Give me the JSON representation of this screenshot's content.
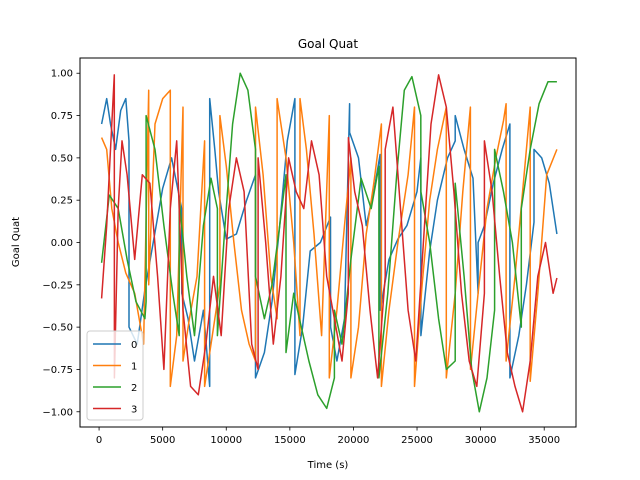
{
  "chart_data": {
    "type": "line",
    "title": "Goal Quat",
    "xlabel": "Time (s)",
    "ylabel": "Goal Quat",
    "xlim": [
      -1500,
      37500
    ],
    "ylim": [
      -1.09,
      1.09
    ],
    "xticks": [
      0,
      5000,
      10000,
      15000,
      20000,
      25000,
      30000,
      35000
    ],
    "xtick_labels": [
      "0",
      "5000",
      "10000",
      "15000",
      "20000",
      "25000",
      "30000",
      "35000"
    ],
    "yticks": [
      -1.0,
      -0.75,
      -0.5,
      -0.25,
      0.0,
      0.25,
      0.5,
      0.75,
      1.0
    ],
    "ytick_labels": [
      "−1.00",
      "−0.75",
      "−0.50",
      "−0.25",
      "0.00",
      "0.25",
      "0.50",
      "0.75",
      "1.00"
    ],
    "grid": false,
    "legend_position": "lower-left",
    "series": [
      {
        "name": "0",
        "color": "#1f77b4",
        "x": [
          200,
          600,
          900,
          1300,
          1700,
          2100,
          2350,
          2351,
          3000,
          3600,
          4300,
          5000,
          5700,
          6500,
          6501,
          7000,
          7500,
          8200,
          8700,
          8701,
          9100,
          9400,
          10000,
          10800,
          11600,
          12300,
          12301,
          13000,
          13600,
          14200,
          14800,
          15400,
          15401,
          16000,
          16600,
          17400,
          18200,
          18201,
          18700,
          19300,
          19700,
          19701,
          20400,
          21000,
          21600,
          22100,
          22101,
          22800,
          23500,
          24200,
          25000,
          25300,
          25301,
          26000,
          26600,
          27400,
          28000,
          28001,
          28700,
          29400,
          29800,
          29801,
          30300,
          31000,
          31700,
          32300,
          32301,
          33000,
          33600,
          34200,
          34201,
          34800,
          35400,
          36000
        ],
        "y": [
          0.7,
          0.85,
          0.7,
          0.55,
          0.78,
          0.85,
          0.6,
          -0.5,
          -0.6,
          -0.28,
          0.02,
          0.32,
          0.5,
          0.2,
          -0.3,
          -0.45,
          -0.7,
          -0.4,
          -0.85,
          0.85,
          0.55,
          0.3,
          0.02,
          0.05,
          0.25,
          0.4,
          -0.8,
          -0.65,
          -0.35,
          0.1,
          0.6,
          0.85,
          -0.78,
          -0.5,
          -0.05,
          0.0,
          0.15,
          -0.5,
          -0.7,
          -0.45,
          0.82,
          0.65,
          0.5,
          0.1,
          0.3,
          0.52,
          -0.4,
          -0.1,
          0.02,
          0.1,
          0.3,
          0.5,
          -0.55,
          -0.05,
          0.25,
          0.5,
          0.6,
          0.75,
          0.55,
          0.38,
          -0.3,
          0.0,
          0.1,
          0.35,
          0.55,
          0.7,
          -0.8,
          -0.55,
          -0.25,
          0.12,
          0.55,
          0.5,
          0.35,
          0.05
        ]
      },
      {
        "name": "1",
        "color": "#ff7f0e",
        "x": [
          200,
          600,
          1000,
          1500,
          2100,
          2800,
          3500,
          3900,
          3901,
          4400,
          5000,
          5600,
          5601,
          6100,
          6600,
          6601,
          7100,
          7700,
          8300,
          8301,
          8900,
          9500,
          9501,
          10000,
          10600,
          11200,
          11800,
          12300,
          12301,
          12900,
          13500,
          14000,
          14001,
          14700,
          15300,
          15800,
          15801,
          16300,
          16900,
          17500,
          18100,
          18101,
          18700,
          19300,
          19800,
          19801,
          20400,
          21000,
          21600,
          22200,
          22201,
          22800,
          23500,
          24300,
          24800,
          24801,
          25400,
          26000,
          26600,
          27300,
          27301,
          28000,
          28600,
          29200,
          29201,
          29800,
          30500,
          31200,
          31800,
          32000,
          32001,
          32700,
          33300,
          33900,
          33901,
          34500,
          35200,
          36000
        ],
        "y": [
          0.62,
          0.55,
          0.2,
          0.0,
          -0.18,
          -0.3,
          -0.6,
          0.9,
          -0.25,
          0.7,
          0.85,
          0.9,
          -0.85,
          -0.55,
          0.8,
          -0.7,
          -0.45,
          -0.2,
          0.6,
          -0.85,
          -0.55,
          -0.25,
          0.75,
          0.45,
          0.0,
          -0.4,
          -0.6,
          -0.7,
          0.8,
          0.4,
          -0.2,
          -0.45,
          0.85,
          0.5,
          0.0,
          -0.55,
          0.85,
          0.55,
          0.05,
          -0.55,
          0.75,
          -0.8,
          -0.4,
          0.1,
          0.5,
          -0.8,
          -0.5,
          0.05,
          0.35,
          0.7,
          -0.85,
          -0.4,
          0.0,
          0.4,
          0.8,
          -0.85,
          -0.25,
          0.25,
          0.55,
          0.8,
          -0.8,
          -0.3,
          0.3,
          0.8,
          -0.75,
          -0.3,
          0.2,
          0.5,
          0.72,
          0.82,
          -0.7,
          -0.2,
          0.3,
          0.8,
          -0.82,
          -0.3,
          0.4,
          0.55
        ]
      },
      {
        "name": "2",
        "color": "#2ca02c",
        "x": [
          200,
          800,
          1500,
          2200,
          2900,
          3600,
          3700,
          3701,
          4400,
          5100,
          5800,
          6300,
          6301,
          6900,
          7500,
          8200,
          8800,
          9300,
          9301,
          9900,
          10500,
          11100,
          11700,
          12300,
          12301,
          13000,
          13600,
          14200,
          14700,
          14701,
          15300,
          15900,
          16500,
          17200,
          17900,
          18500,
          18501,
          19100,
          19800,
          20600,
          21400,
          22000,
          22001,
          22700,
          23400,
          24000,
          24600,
          25300,
          25301,
          26000,
          26700,
          27300,
          28000,
          28001,
          28700,
          29300,
          29900,
          30500,
          31100,
          31101,
          31800,
          32500,
          33200,
          33201,
          33900,
          34600,
          35300,
          36000
        ],
        "y": [
          -0.12,
          0.28,
          0.2,
          -0.1,
          -0.35,
          -0.45,
          -0.35,
          0.75,
          0.55,
          0.1,
          -0.3,
          -0.55,
          0.25,
          -0.2,
          -0.55,
          0.1,
          0.38,
          0.2,
          -0.55,
          0.1,
          0.7,
          1.0,
          0.9,
          0.55,
          -0.2,
          -0.45,
          -0.25,
          0.1,
          0.4,
          -0.65,
          -0.3,
          -0.5,
          -0.7,
          -0.9,
          -0.98,
          -0.8,
          -0.4,
          -0.6,
          -0.1,
          0.38,
          0.2,
          0.45,
          -0.8,
          -0.3,
          0.4,
          0.9,
          0.98,
          0.75,
          0.3,
          0.0,
          -0.45,
          -0.75,
          -0.7,
          0.35,
          -0.2,
          -0.75,
          -1.0,
          -0.8,
          -0.4,
          0.55,
          0.3,
          0.0,
          -0.5,
          0.2,
          0.55,
          0.82,
          0.95,
          0.95
        ]
      },
      {
        "name": "3",
        "color": "#d62728",
        "x": [
          200,
          600,
          900,
          1200,
          1201,
          1500,
          1800,
          2200,
          2800,
          3400,
          4000,
          4600,
          5100,
          5600,
          6100,
          6600,
          7200,
          7800,
          8400,
          9000,
          9600,
          10200,
          10800,
          11400,
          12000,
          12500,
          12501,
          13100,
          13700,
          14300,
          14900,
          15500,
          16100,
          16700,
          17300,
          17900,
          18500,
          19100,
          19600,
          19601,
          20100,
          20700,
          21300,
          21900,
          22500,
          22501,
          23100,
          23700,
          24300,
          24900,
          25500,
          26100,
          26700,
          27300,
          27900,
          28500,
          29100,
          29700,
          30300,
          30301,
          30900,
          31500,
          32100,
          32700,
          33300,
          33900,
          34500,
          35100,
          35700,
          36000
        ],
        "y": [
          -0.33,
          0.1,
          0.55,
          0.99,
          -0.8,
          0.2,
          0.6,
          0.4,
          -0.1,
          0.4,
          0.35,
          -0.2,
          -0.75,
          0.2,
          0.6,
          -0.4,
          -0.85,
          -0.9,
          -0.6,
          -0.2,
          -0.55,
          0.2,
          0.5,
          0.3,
          -0.6,
          -0.75,
          0.5,
          0.0,
          -0.6,
          -0.2,
          0.5,
          0.3,
          0.2,
          0.6,
          0.4,
          -0.2,
          -0.45,
          -0.7,
          -0.3,
          0.62,
          0.3,
          0.1,
          -0.4,
          -0.8,
          -0.2,
          0.55,
          0.8,
          0.2,
          -0.4,
          -0.7,
          0.0,
          0.7,
          0.99,
          0.8,
          0.3,
          -0.3,
          -0.7,
          -0.85,
          -0.3,
          0.6,
          0.3,
          -0.2,
          -0.65,
          -0.85,
          -1.0,
          -0.7,
          -0.2,
          0.0,
          -0.3,
          -0.21
        ]
      }
    ]
  }
}
